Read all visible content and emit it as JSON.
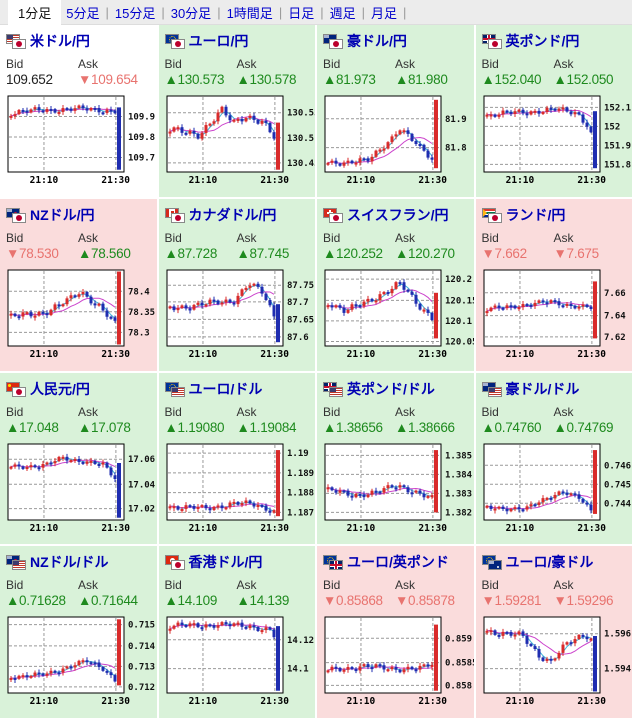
{
  "tabs": {
    "items": [
      "1分足",
      "5分足",
      "15分足",
      "30分足",
      "1時間足",
      "日足",
      "週足",
      "月足"
    ],
    "active_index": 0
  },
  "labels": {
    "bid": "Bid",
    "ask": "Ask"
  },
  "colors": {
    "up_text": "#1e8a1e",
    "down_text": "#e8736f",
    "candle_up": "#d92b2b",
    "candle_down": "#1f2db0",
    "ma_fast": "#3fb4d8",
    "ma_slow": "#cc44cc",
    "bg_green": "#d9f2d9",
    "bg_pink": "#fadcdc",
    "pair_name": "#0000b3",
    "tab_link": "#0000cc"
  },
  "panels": [
    {
      "code": "usd-jpy",
      "pair": "米ドル/円",
      "flags": [
        "us",
        "jp"
      ],
      "bg": "white",
      "bid": {
        "dir": "flat",
        "value": "109.652"
      },
      "ask": {
        "dir": "down",
        "value": "109.654"
      },
      "chart": {
        "y_ticks": [
          {
            "label": "109.9",
            "f": 0.27
          },
          {
            "label": "109.8",
            "f": 0.54
          },
          {
            "label": "109.7",
            "f": 0.81
          }
        ],
        "x_ticks": [
          "21:10",
          "21:30"
        ],
        "control": [
          [
            0,
            0.22
          ],
          [
            0.3,
            0.18
          ],
          [
            0.7,
            0.17
          ],
          [
            0.9,
            0.2
          ]
        ],
        "j": 0.03,
        "seed": 1,
        "spike": {
          "from": 0.15,
          "to": 0.97,
          "color": "blue"
        }
      }
    },
    {
      "code": "eur-jpy",
      "pair": "ユーロ/円",
      "flags": [
        "eu",
        "jp"
      ],
      "bg": "green",
      "bid": {
        "dir": "up",
        "value": "130.573"
      },
      "ask": {
        "dir": "up",
        "value": "130.578"
      },
      "chart": {
        "y_ticks": [
          {
            "label": "130.55",
            "f": 0.22
          },
          {
            "label": "130.5",
            "f": 0.55
          },
          {
            "label": "130.45",
            "f": 0.88
          }
        ],
        "x_ticks": [
          "21:10",
          "21:30"
        ],
        "control": [
          [
            0,
            0.45
          ],
          [
            0.25,
            0.5
          ],
          [
            0.45,
            0.2
          ],
          [
            0.55,
            0.35
          ],
          [
            0.65,
            0.25
          ],
          [
            0.8,
            0.35
          ],
          [
            0.9,
            0.55
          ]
        ],
        "j": 0.04,
        "seed": 2,
        "spike": {
          "from": 0.35,
          "to": 0.97,
          "color": "red"
        }
      }
    },
    {
      "code": "aud-jpy",
      "pair": "豪ドル/円",
      "flags": [
        "au",
        "jp"
      ],
      "bg": "green",
      "bid": {
        "dir": "up",
        "value": "81.973"
      },
      "ask": {
        "dir": "up",
        "value": "81.980"
      },
      "chart": {
        "y_ticks": [
          {
            "label": "81.9",
            "f": 0.3
          },
          {
            "label": "81.8",
            "f": 0.68
          }
        ],
        "x_ticks": [
          "21:10",
          "21:30"
        ],
        "control": [
          [
            0,
            0.88
          ],
          [
            0.35,
            0.85
          ],
          [
            0.55,
            0.55
          ],
          [
            0.62,
            0.42
          ],
          [
            0.75,
            0.62
          ],
          [
            0.9,
            0.82
          ]
        ],
        "j": 0.03,
        "seed": 3,
        "spike": {
          "from": 0.95,
          "to": 0.05,
          "color": "red"
        }
      }
    },
    {
      "code": "gbp-jpy",
      "pair": "英ポンド/円",
      "flags": [
        "uk",
        "jp"
      ],
      "bg": "green",
      "bid": {
        "dir": "up",
        "value": "152.040"
      },
      "ask": {
        "dir": "up",
        "value": "152.050"
      },
      "chart": {
        "y_ticks": [
          {
            "label": "152.1",
            "f": 0.15
          },
          {
            "label": "152",
            "f": 0.4
          },
          {
            "label": "151.9",
            "f": 0.65
          },
          {
            "label": "151.8",
            "f": 0.9
          }
        ],
        "x_ticks": [
          "21:10",
          "21:30"
        ],
        "control": [
          [
            0,
            0.25
          ],
          [
            0.4,
            0.2
          ],
          [
            0.6,
            0.18
          ],
          [
            0.78,
            0.22
          ],
          [
            0.88,
            0.4
          ],
          [
            0.9,
            0.5
          ]
        ],
        "j": 0.03,
        "seed": 4,
        "spike": {
          "from": 0.2,
          "to": 0.95,
          "color": "blue"
        }
      }
    },
    {
      "code": "nzd-jpy",
      "pair": "NZドル/円",
      "flags": [
        "nz",
        "jp"
      ],
      "bg": "pink",
      "bid": {
        "dir": "down",
        "value": "78.530"
      },
      "ask": {
        "dir": "up",
        "value": "78.560"
      },
      "chart": {
        "y_ticks": [
          {
            "label": "78.4",
            "f": 0.28
          },
          {
            "label": "78.35",
            "f": 0.55
          },
          {
            "label": "78.3",
            "f": 0.82
          }
        ],
        "x_ticks": [
          "21:10",
          "21:30"
        ],
        "control": [
          [
            0,
            0.62
          ],
          [
            0.3,
            0.55
          ],
          [
            0.5,
            0.4
          ],
          [
            0.6,
            0.28
          ],
          [
            0.75,
            0.45
          ],
          [
            0.9,
            0.72
          ]
        ],
        "j": 0.035,
        "seed": 5,
        "spike": {
          "from": 0.98,
          "to": 0.02,
          "color": "red"
        }
      }
    },
    {
      "code": "cad-jpy",
      "pair": "カナダドル/円",
      "flags": [
        "ca",
        "jp"
      ],
      "bg": "green",
      "bid": {
        "dir": "up",
        "value": "87.728"
      },
      "ask": {
        "dir": "up",
        "value": "87.745"
      },
      "chart": {
        "y_ticks": [
          {
            "label": "87.75",
            "f": 0.2
          },
          {
            "label": "87.7",
            "f": 0.42
          },
          {
            "label": "87.65",
            "f": 0.65
          },
          {
            "label": "87.6",
            "f": 0.88
          }
        ],
        "x_ticks": [
          "21:10",
          "21:30"
        ],
        "control": [
          [
            0,
            0.5
          ],
          [
            0.3,
            0.45
          ],
          [
            0.55,
            0.4
          ],
          [
            0.68,
            0.18
          ],
          [
            0.8,
            0.3
          ],
          [
            0.9,
            0.6
          ]
        ],
        "j": 0.035,
        "seed": 6,
        "spike": {
          "from": 0.45,
          "to": 0.95,
          "color": "blue"
        }
      }
    },
    {
      "code": "chf-jpy",
      "pair": "スイスフラン/円",
      "flags": [
        "ch",
        "jp"
      ],
      "bg": "green",
      "bid": {
        "dir": "up",
        "value": "120.252"
      },
      "ask": {
        "dir": "up",
        "value": "120.270"
      },
      "chart": {
        "y_ticks": [
          {
            "label": "120.2",
            "f": 0.12
          },
          {
            "label": "120.15",
            "f": 0.4
          },
          {
            "label": "120.1",
            "f": 0.67
          },
          {
            "label": "120.05",
            "f": 0.94
          }
        ],
        "x_ticks": [
          "21:10",
          "21:30"
        ],
        "control": [
          [
            0,
            0.42
          ],
          [
            0.15,
            0.55
          ],
          [
            0.35,
            0.4
          ],
          [
            0.55,
            0.25
          ],
          [
            0.62,
            0.18
          ],
          [
            0.78,
            0.45
          ],
          [
            0.9,
            0.62
          ]
        ],
        "j": 0.035,
        "seed": 7,
        "spike": {
          "from": 0.3,
          "to": 0.9,
          "color": "red"
        }
      }
    },
    {
      "code": "zar-jpy",
      "pair": "ランド/円",
      "flags": [
        "za",
        "jp"
      ],
      "bg": "pink",
      "bid": {
        "dir": "down",
        "value": "7.662"
      },
      "ask": {
        "dir": "down",
        "value": "7.675"
      },
      "chart": {
        "y_ticks": [
          {
            "label": "7.66",
            "f": 0.3
          },
          {
            "label": "7.64",
            "f": 0.6
          },
          {
            "label": "7.62",
            "f": 0.88
          }
        ],
        "x_ticks": [
          "21:10",
          "21:30"
        ],
        "control": [
          [
            0,
            0.52
          ],
          [
            0.3,
            0.46
          ],
          [
            0.55,
            0.42
          ],
          [
            0.75,
            0.47
          ],
          [
            0.9,
            0.5
          ]
        ],
        "j": 0.025,
        "seed": 8,
        "spike": {
          "from": 0.9,
          "to": 0.15,
          "color": "red"
        }
      }
    },
    {
      "code": "cny-jpy",
      "pair": "人民元/円",
      "flags": [
        "cn",
        "jp"
      ],
      "bg": "green",
      "bid": {
        "dir": "up",
        "value": "17.048"
      },
      "ask": {
        "dir": "up",
        "value": "17.078"
      },
      "chart": {
        "y_ticks": [
          {
            "label": "17.06",
            "f": 0.2
          },
          {
            "label": "17.04",
            "f": 0.53
          },
          {
            "label": "17.02",
            "f": 0.85
          }
        ],
        "x_ticks": [
          "21:10",
          "21:30"
        ],
        "control": [
          [
            0,
            0.3
          ],
          [
            0.3,
            0.28
          ],
          [
            0.45,
            0.18
          ],
          [
            0.6,
            0.22
          ],
          [
            0.8,
            0.28
          ],
          [
            0.9,
            0.45
          ]
        ],
        "j": 0.025,
        "seed": 9,
        "spike": {
          "from": 0.25,
          "to": 0.97,
          "color": "blue"
        }
      }
    },
    {
      "code": "eur-usd",
      "pair": "ユーロ/ドル",
      "flags": [
        "eu",
        "us"
      ],
      "bg": "green",
      "bid": {
        "dir": "up",
        "value": "1.19080"
      },
      "ask": {
        "dir": "up",
        "value": "1.19084"
      },
      "chart": {
        "y_ticks": [
          {
            "label": "1.19",
            "f": 0.12
          },
          {
            "label": "1.189",
            "f": 0.38
          },
          {
            "label": "1.188",
            "f": 0.64
          },
          {
            "label": "1.187",
            "f": 0.9
          }
        ],
        "x_ticks": [
          "21:10",
          "21:30"
        ],
        "control": [
          [
            0,
            0.82
          ],
          [
            0.3,
            0.85
          ],
          [
            0.55,
            0.78
          ],
          [
            0.75,
            0.8
          ],
          [
            0.9,
            0.88
          ]
        ],
        "j": 0.03,
        "seed": 10,
        "spike": {
          "from": 0.95,
          "to": 0.08,
          "color": "red"
        }
      }
    },
    {
      "code": "gbp-usd",
      "pair": "英ポンド/ドル",
      "flags": [
        "uk",
        "us"
      ],
      "bg": "green",
      "bid": {
        "dir": "up",
        "value": "1.38656"
      },
      "ask": {
        "dir": "up",
        "value": "1.38666"
      },
      "chart": {
        "y_ticks": [
          {
            "label": "1.385",
            "f": 0.15
          },
          {
            "label": "1.384",
            "f": 0.4
          },
          {
            "label": "1.383",
            "f": 0.65
          },
          {
            "label": "1.382",
            "f": 0.9
          }
        ],
        "x_ticks": [
          "21:10",
          "21:30"
        ],
        "control": [
          [
            0,
            0.6
          ],
          [
            0.2,
            0.68
          ],
          [
            0.45,
            0.62
          ],
          [
            0.6,
            0.55
          ],
          [
            0.75,
            0.62
          ],
          [
            0.9,
            0.72
          ]
        ],
        "j": 0.03,
        "seed": 11,
        "spike": {
          "from": 0.9,
          "to": 0.08,
          "color": "red"
        }
      }
    },
    {
      "code": "aud-usd",
      "pair": "豪ドル/ドル",
      "flags": [
        "au",
        "us"
      ],
      "bg": "green",
      "bid": {
        "dir": "up",
        "value": "0.74760"
      },
      "ask": {
        "dir": "up",
        "value": "0.74769"
      },
      "chart": {
        "y_ticks": [
          {
            "label": "0.746",
            "f": 0.28
          },
          {
            "label": "0.745",
            "f": 0.53
          },
          {
            "label": "0.744",
            "f": 0.78
          }
        ],
        "x_ticks": [
          "21:10",
          "21:30"
        ],
        "control": [
          [
            0,
            0.84
          ],
          [
            0.35,
            0.85
          ],
          [
            0.55,
            0.68
          ],
          [
            0.65,
            0.62
          ],
          [
            0.8,
            0.72
          ],
          [
            0.9,
            0.88
          ]
        ],
        "j": 0.025,
        "seed": 12,
        "spike": {
          "from": 0.92,
          "to": 0.08,
          "color": "red"
        }
      }
    },
    {
      "code": "nzd-usd",
      "pair": "NZドル/ドル",
      "flags": [
        "nz",
        "us"
      ],
      "bg": "green",
      "bid": {
        "dir": "up",
        "value": "0.71628"
      },
      "ask": {
        "dir": "up",
        "value": "0.71644"
      },
      "chart": {
        "y_ticks": [
          {
            "label": "0.715",
            "f": 0.1
          },
          {
            "label": "0.714",
            "f": 0.38
          },
          {
            "label": "0.713",
            "f": 0.65
          },
          {
            "label": "0.712",
            "f": 0.92
          }
        ],
        "x_ticks": [
          "21:10",
          "21:30"
        ],
        "control": [
          [
            0,
            0.78
          ],
          [
            0.3,
            0.76
          ],
          [
            0.55,
            0.62
          ],
          [
            0.65,
            0.58
          ],
          [
            0.8,
            0.68
          ],
          [
            0.9,
            0.82
          ]
        ],
        "j": 0.025,
        "seed": 13,
        "spike": {
          "from": 0.9,
          "to": 0.03,
          "color": "red"
        }
      }
    },
    {
      "code": "hkd-jpy",
      "pair": "香港ドル/円",
      "flags": [
        "hk",
        "jp"
      ],
      "bg": "green",
      "bid": {
        "dir": "up",
        "value": "14.109"
      },
      "ask": {
        "dir": "up",
        "value": "14.139"
      },
      "chart": {
        "y_ticks": [
          {
            "label": "14.12",
            "f": 0.3
          },
          {
            "label": "14.1",
            "f": 0.68
          }
        ],
        "x_ticks": [
          "21:10",
          "21:30"
        ],
        "control": [
          [
            0,
            0.12
          ],
          [
            0.4,
            0.1
          ],
          [
            0.7,
            0.12
          ],
          [
            0.88,
            0.18
          ],
          [
            0.9,
            0.25
          ]
        ],
        "j": 0.03,
        "seed": 14,
        "spike": {
          "from": 0.12,
          "to": 0.97,
          "color": "blue"
        }
      }
    },
    {
      "code": "eur-gbp",
      "pair": "ユーロ/英ポンド",
      "flags": [
        "eu",
        "uk"
      ],
      "bg": "pink",
      "bid": {
        "dir": "down",
        "value": "0.85868"
      },
      "ask": {
        "dir": "down",
        "value": "0.85878"
      },
      "chart": {
        "y_ticks": [
          {
            "label": "0.859",
            "f": 0.28
          },
          {
            "label": "0.8585",
            "f": 0.6
          },
          {
            "label": "0.858",
            "f": 0.9
          }
        ],
        "x_ticks": [
          "21:10",
          "21:30"
        ],
        "control": [
          [
            0,
            0.7
          ],
          [
            0.3,
            0.65
          ],
          [
            0.6,
            0.68
          ],
          [
            0.8,
            0.68
          ],
          [
            0.9,
            0.62
          ]
        ],
        "j": 0.03,
        "seed": 15,
        "spike": {
          "from": 0.97,
          "to": 0.1,
          "color": "red"
        }
      }
    },
    {
      "code": "eur-aud",
      "pair": "ユーロ/豪ドル",
      "flags": [
        "eu",
        "au"
      ],
      "bg": "pink",
      "bid": {
        "dir": "down",
        "value": "1.59281"
      },
      "ask": {
        "dir": "down",
        "value": "1.59296"
      },
      "chart": {
        "y_ticks": [
          {
            "label": "1.596",
            "f": 0.22
          },
          {
            "label": "1.594",
            "f": 0.68
          }
        ],
        "x_ticks": [
          "21:10",
          "21:30"
        ],
        "control": [
          [
            0,
            0.18
          ],
          [
            0.3,
            0.25
          ],
          [
            0.45,
            0.5
          ],
          [
            0.55,
            0.58
          ],
          [
            0.7,
            0.35
          ],
          [
            0.85,
            0.22
          ],
          [
            0.9,
            0.28
          ]
        ],
        "j": 0.035,
        "seed": 16,
        "spike": {
          "from": 0.25,
          "to": 0.98,
          "color": "blue"
        }
      }
    }
  ]
}
